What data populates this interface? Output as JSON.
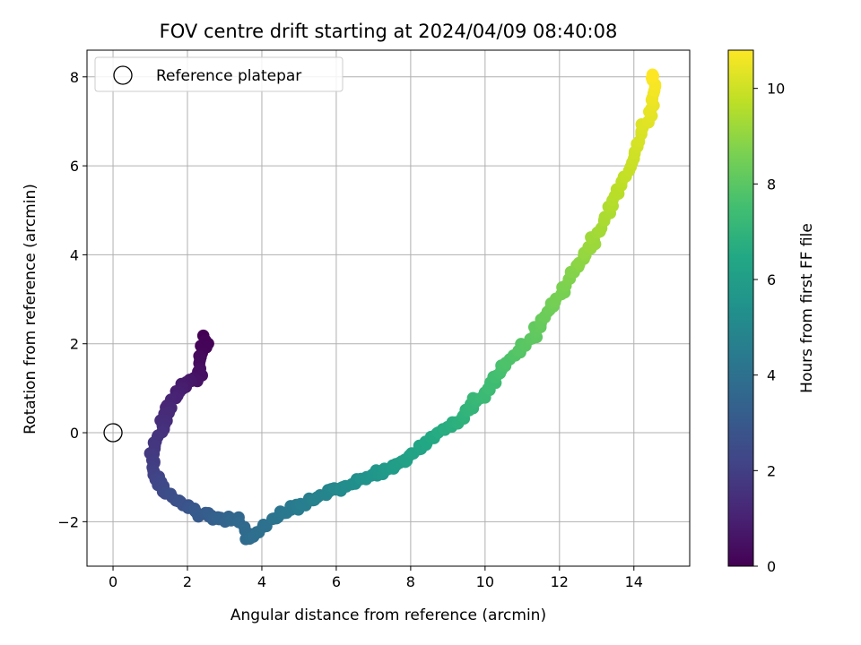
{
  "chart_data": {
    "type": "scatter",
    "title": "FOV centre drift starting at 2024/04/09 08:40:08",
    "xlabel": "Angular distance from reference (arcmin)",
    "ylabel": "Rotation from reference (arcmin)",
    "xlim": [
      -0.7,
      15.5
    ],
    "ylim": [
      -3.0,
      8.6
    ],
    "xticks": [
      0,
      2,
      4,
      6,
      8,
      10,
      12,
      14
    ],
    "yticks": [
      -2,
      0,
      2,
      4,
      6,
      8
    ],
    "grid": true,
    "legend": {
      "placement": "top-left",
      "entries": [
        "Reference platepar"
      ]
    },
    "reference_point": {
      "x": 0.0,
      "y": 0.0,
      "label": "Reference platepar"
    },
    "colorbar": {
      "label": "Hours from first FF file",
      "min": 0,
      "max": 10.8,
      "ticks": [
        0,
        2,
        4,
        6,
        8,
        10
      ],
      "colormap": "viridis"
    },
    "track": [
      {
        "x": 2.45,
        "y": 2.15,
        "t": 0.0
      },
      {
        "x": 2.3,
        "y": 1.25,
        "t": 0.5
      },
      {
        "x": 1.9,
        "y": 1.05,
        "t": 0.8
      },
      {
        "x": 1.55,
        "y": 0.7,
        "t": 1.1
      },
      {
        "x": 1.3,
        "y": 0.05,
        "t": 1.5
      },
      {
        "x": 1.05,
        "y": -0.5,
        "t": 1.8
      },
      {
        "x": 1.1,
        "y": -1.0,
        "t": 2.1
      },
      {
        "x": 1.5,
        "y": -1.35,
        "t": 2.5
      },
      {
        "x": 2.0,
        "y": -1.65,
        "t": 2.8
      },
      {
        "x": 2.6,
        "y": -1.9,
        "t": 3.2
      },
      {
        "x": 3.3,
        "y": -1.95,
        "t": 3.6
      },
      {
        "x": 3.7,
        "y": -2.45,
        "t": 3.8
      },
      {
        "x": 4.3,
        "y": -1.9,
        "t": 4.1
      },
      {
        "x": 5.0,
        "y": -1.65,
        "t": 4.5
      },
      {
        "x": 5.8,
        "y": -1.35,
        "t": 4.9
      },
      {
        "x": 6.5,
        "y": -1.1,
        "t": 5.3
      },
      {
        "x": 7.2,
        "y": -0.9,
        "t": 5.7
      },
      {
        "x": 7.9,
        "y": -0.6,
        "t": 6.1
      },
      {
        "x": 8.6,
        "y": -0.1,
        "t": 6.5
      },
      {
        "x": 9.4,
        "y": 0.35,
        "t": 6.9
      },
      {
        "x": 10.0,
        "y": 0.9,
        "t": 7.3
      },
      {
        "x": 10.6,
        "y": 1.55,
        "t": 7.7
      },
      {
        "x": 11.3,
        "y": 2.2,
        "t": 8.1
      },
      {
        "x": 11.9,
        "y": 2.95,
        "t": 8.5
      },
      {
        "x": 12.4,
        "y": 3.6,
        "t": 8.8
      },
      {
        "x": 12.9,
        "y": 4.3,
        "t": 9.2
      },
      {
        "x": 13.4,
        "y": 5.05,
        "t": 9.5
      },
      {
        "x": 13.85,
        "y": 5.9,
        "t": 9.85
      },
      {
        "x": 14.25,
        "y": 6.75,
        "t": 10.2
      },
      {
        "x": 14.55,
        "y": 7.55,
        "t": 10.55
      },
      {
        "x": 14.5,
        "y": 8.05,
        "t": 10.8
      }
    ]
  }
}
